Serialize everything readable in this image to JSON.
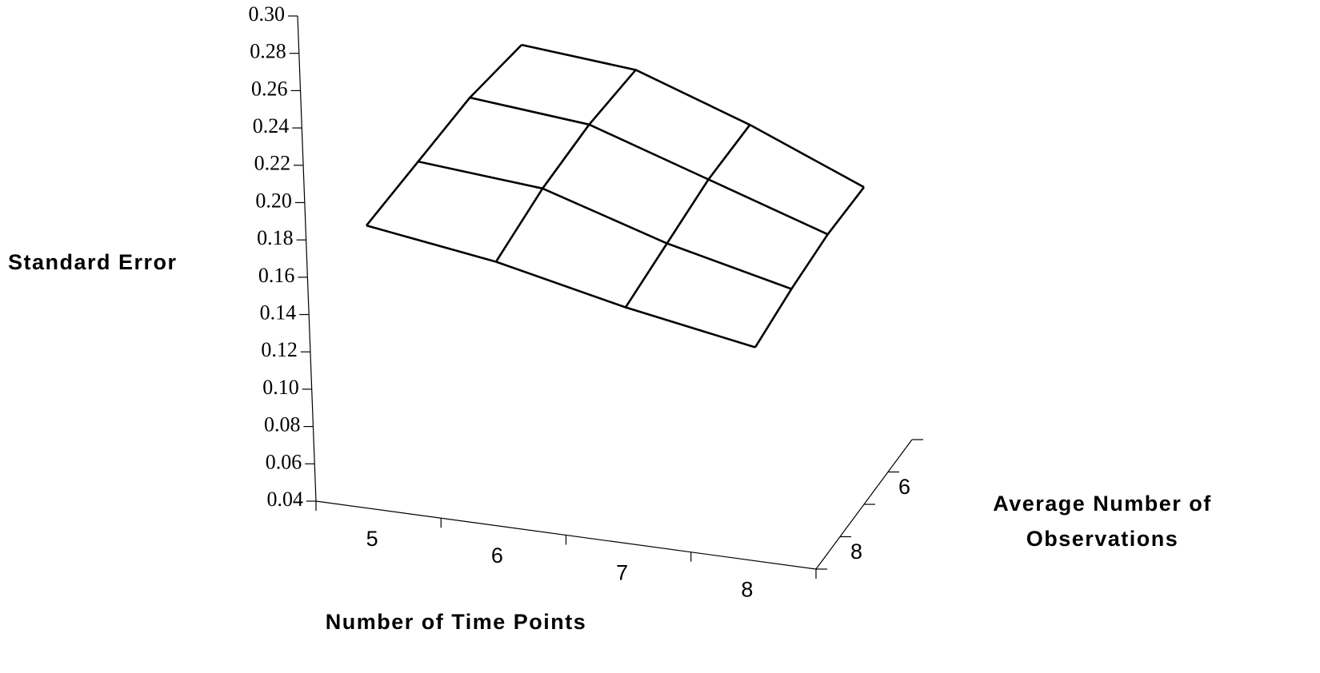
{
  "chart_data": {
    "type": "surface",
    "y_title": "Standard Error",
    "x_title": "Number of Time Points",
    "depth_title": [
      "Average Number of",
      "Observations"
    ],
    "categories": [
      "5",
      "6",
      "7",
      "8"
    ],
    "depth_categories": [
      null,
      "6",
      null,
      "8"
    ],
    "values": [
      [
        0.204,
        0.2,
        0.18,
        0.156
      ],
      [
        0.2,
        0.195,
        0.175,
        0.155
      ],
      [
        0.19,
        0.185,
        0.165,
        0.15
      ],
      [
        0.18,
        0.17,
        0.155,
        0.143
      ]
    ],
    "color": "#000000",
    "ylim": [
      0.04,
      0.3
    ],
    "yticks": [
      0.04,
      0.06,
      0.08,
      {
        "value": 0.1,
        "label": "0.10"
      },
      0.12,
      0.14,
      0.16,
      0.18,
      {
        "value": 0.2,
        "label": "0.20"
      },
      0.22,
      0.24,
      0.26,
      0.28,
      {
        "value": 0.3,
        "label": "0.30"
      }
    ]
  }
}
